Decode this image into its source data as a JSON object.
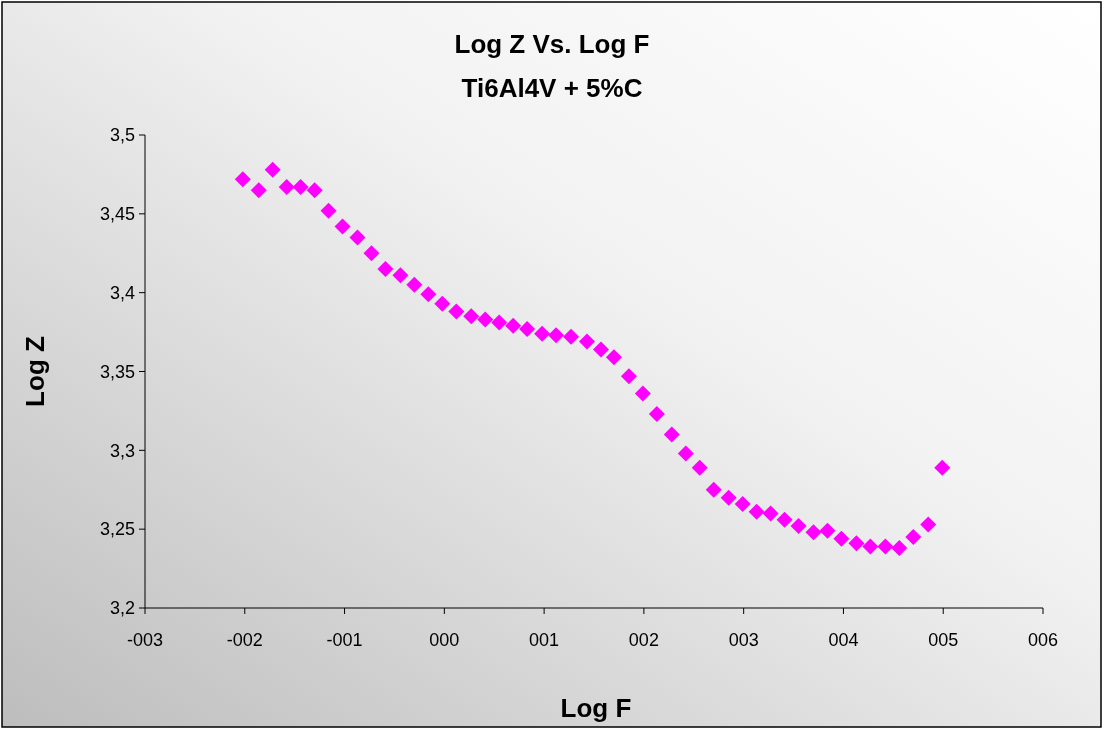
{
  "chart_data": {
    "type": "scatter",
    "title": "Log Z Vs. Log F",
    "subtitle": "Ti6Al4V + 5%C",
    "xlabel": "Log F",
    "ylabel": "Log Z",
    "marker": "diamond",
    "grid": false,
    "xlim": [
      -3,
      6
    ],
    "xticks": [
      {
        "value": -3,
        "label": "-003"
      },
      {
        "value": -2,
        "label": "-002"
      },
      {
        "value": -1,
        "label": "-001"
      },
      {
        "value": 0,
        "label": "000"
      },
      {
        "value": 1,
        "label": "001"
      },
      {
        "value": 2,
        "label": "002"
      },
      {
        "value": 3,
        "label": "003"
      },
      {
        "value": 4,
        "label": "004"
      },
      {
        "value": 5,
        "label": "005"
      },
      {
        "value": 6,
        "label": "006"
      }
    ],
    "ylim": [
      3.2,
      3.5
    ],
    "yticks": [
      {
        "value": 3.2,
        "label": "3,2"
      },
      {
        "value": 3.25,
        "label": "3,25"
      },
      {
        "value": 3.3,
        "label": "3,3"
      },
      {
        "value": 3.35,
        "label": "3,35"
      },
      {
        "value": 3.4,
        "label": "3,4"
      },
      {
        "value": 3.45,
        "label": "3,45"
      },
      {
        "value": 3.5,
        "label": "3,5"
      }
    ],
    "series": [
      {
        "color": "#ff00ff",
        "x": [
          -2.02,
          -1.86,
          -1.72,
          -1.58,
          -1.44,
          -1.3,
          -1.16,
          -1.02,
          -0.87,
          -0.73,
          -0.59,
          -0.44,
          -0.3,
          -0.16,
          -0.02,
          0.12,
          0.27,
          0.41,
          0.55,
          0.69,
          0.83,
          0.98,
          1.12,
          1.27,
          1.43,
          1.57,
          1.7,
          1.85,
          1.99,
          2.13,
          2.28,
          2.42,
          2.56,
          2.7,
          2.85,
          2.99,
          3.13,
          3.27,
          3.41,
          3.55,
          3.7,
          3.84,
          3.98,
          4.13,
          4.27,
          4.42,
          4.56,
          4.7,
          4.85,
          4.99
        ],
        "values": [
          3.472,
          3.465,
          3.478,
          3.467,
          3.467,
          3.465,
          3.452,
          3.442,
          3.435,
          3.425,
          3.415,
          3.411,
          3.405,
          3.399,
          3.393,
          3.388,
          3.385,
          3.383,
          3.381,
          3.379,
          3.377,
          3.374,
          3.373,
          3.372,
          3.369,
          3.364,
          3.359,
          3.347,
          3.336,
          3.323,
          3.31,
          3.298,
          3.289,
          3.275,
          3.27,
          3.266,
          3.261,
          3.26,
          3.256,
          3.252,
          3.248,
          3.249,
          3.244,
          3.241,
          3.239,
          3.239,
          3.238,
          3.245,
          3.253,
          3.289
        ]
      }
    ]
  }
}
